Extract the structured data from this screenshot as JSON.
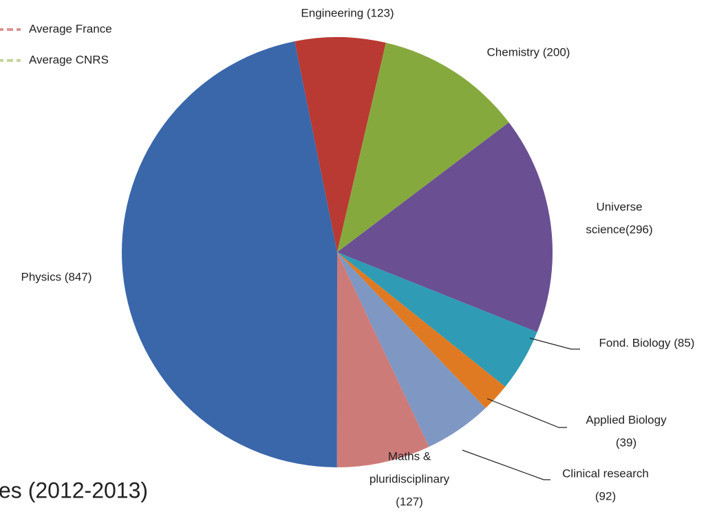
{
  "chart_data": {
    "type": "pie",
    "title": "es (2012-2013)",
    "values": [
      123,
      200,
      296,
      85,
      39,
      92,
      127,
      847
    ],
    "value_labels": [
      [
        "Engineering (123)"
      ],
      [
        "Chemistry (200)"
      ],
      [
        "Universe",
        "science(296)"
      ],
      [
        "Fond. Biology (85)"
      ],
      [
        "Applied Biology",
        "(39)"
      ],
      [
        "Clinical research",
        "(92)"
      ],
      [
        "Maths &",
        "pluridisciplinary",
        "(127)"
      ],
      [
        "Physics (847)"
      ]
    ],
    "colors": [
      "#b93a33",
      "#86a93e",
      "#6a4f93",
      "#2f9bb5",
      "#e07a22",
      "#7f97c3",
      "#cc7b79",
      "#3a67aa"
    ],
    "legend": [
      {
        "name": "Average France",
        "color": "#d99694"
      },
      {
        "name": "Average CNRS",
        "color": "#c3d69b"
      }
    ]
  }
}
